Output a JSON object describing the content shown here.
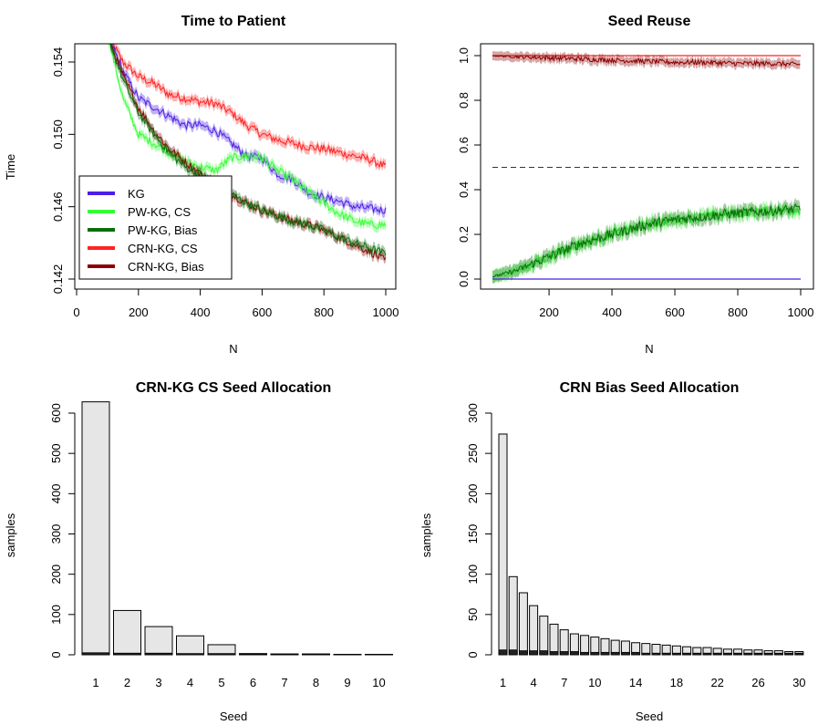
{
  "colors": {
    "kg": "#4b1fe6",
    "pw_cs": "#33ff33",
    "pw_bias": "#0a6e0a",
    "crn_cs": "#ff2222",
    "crn_bias": "#8b0000",
    "bar_fill": "#e6e6e6",
    "bar_base": "#222222"
  },
  "chart_data": [
    {
      "type": "line",
      "title": "Time to Patient",
      "xlabel": "N",
      "ylabel": "Time",
      "xlim": [
        0,
        1000
      ],
      "ylim": [
        0.142,
        0.1555
      ],
      "xticks": [
        0,
        200,
        400,
        600,
        800,
        1000
      ],
      "yticks": [
        0.142,
        0.146,
        0.15,
        0.154
      ],
      "ytick_labels": [
        "0.142",
        "0.146",
        "0.150",
        "0.154"
      ],
      "legend": {
        "position": "bottom-left",
        "entries": [
          "KG",
          "PW-KG, CS",
          "PW-KG, Bias",
          "CRN-KG, CS",
          "CRN-KG, Bias"
        ]
      },
      "series": [
        {
          "name": "KG",
          "color_key": "kg",
          "x": [
            100,
            150,
            200,
            250,
            300,
            350,
            400,
            450,
            500,
            550,
            600,
            650,
            700,
            750,
            800,
            850,
            900,
            950,
            1000
          ],
          "values": [
            0.1555,
            0.1535,
            0.152,
            0.1515,
            0.151,
            0.1505,
            0.1505,
            0.1502,
            0.1495,
            0.1488,
            0.1487,
            0.1478,
            0.1475,
            0.1468,
            0.1465,
            0.1463,
            0.146,
            0.1459,
            0.1458
          ]
        },
        {
          "name": "PW-KG, CS",
          "color_key": "pw_cs",
          "x": [
            100,
            150,
            200,
            250,
            300,
            350,
            400,
            450,
            500,
            550,
            600,
            650,
            700,
            750,
            800,
            850,
            900,
            950,
            1000
          ],
          "values": [
            0.1555,
            0.152,
            0.15,
            0.1495,
            0.149,
            0.1485,
            0.1482,
            0.148,
            0.1487,
            0.1488,
            0.1487,
            0.148,
            0.1475,
            0.1468,
            0.1462,
            0.1456,
            0.1452,
            0.145,
            0.145
          ]
        },
        {
          "name": "PW-KG, Bias",
          "color_key": "pw_bias",
          "x": [
            100,
            150,
            200,
            250,
            300,
            350,
            400,
            450,
            500,
            550,
            600,
            650,
            700,
            750,
            800,
            850,
            900,
            950,
            1000
          ],
          "values": [
            0.1555,
            0.153,
            0.1512,
            0.15,
            0.149,
            0.1482,
            0.1478,
            0.1472,
            0.1467,
            0.1462,
            0.1458,
            0.1455,
            0.1452,
            0.145,
            0.1447,
            0.1443,
            0.144,
            0.1437,
            0.1434
          ]
        },
        {
          "name": "CRN-KG, CS",
          "color_key": "crn_cs",
          "x": [
            100,
            150,
            200,
            250,
            300,
            350,
            400,
            450,
            500,
            550,
            600,
            650,
            700,
            750,
            800,
            850,
            900,
            950,
            1000
          ],
          "values": [
            0.1555,
            0.154,
            0.1532,
            0.1528,
            0.1522,
            0.152,
            0.1518,
            0.1517,
            0.1512,
            0.1505,
            0.15,
            0.1497,
            0.1495,
            0.1493,
            0.1492,
            0.149,
            0.1488,
            0.1486,
            0.1482
          ]
        },
        {
          "name": "CRN-KG, Bias",
          "color_key": "crn_bias",
          "x": [
            100,
            150,
            200,
            250,
            300,
            350,
            400,
            450,
            500,
            550,
            600,
            650,
            700,
            750,
            800,
            850,
            900,
            950,
            1000
          ],
          "values": [
            0.1555,
            0.1532,
            0.1515,
            0.1502,
            0.1492,
            0.1485,
            0.1478,
            0.1472,
            0.1467,
            0.1462,
            0.1458,
            0.1455,
            0.1452,
            0.145,
            0.1447,
            0.1443,
            0.1439,
            0.1435,
            0.143
          ]
        }
      ]
    },
    {
      "type": "line",
      "title": "Seed Reuse",
      "xlabel": "N",
      "ylabel": "",
      "xlim": [
        0,
        1000
      ],
      "ylim": [
        0,
        1.0
      ],
      "xticks": [
        200,
        400,
        600,
        800,
        1000
      ],
      "yticks": [
        0.0,
        0.2,
        0.4,
        0.6,
        0.8,
        1.0
      ],
      "ytick_labels": [
        "0.0",
        "0.2",
        "0.4",
        "0.6",
        "0.8",
        "1.0"
      ],
      "reference_line": 0.5,
      "series": [
        {
          "name": "CRN-KG, CS",
          "color_key": "crn_cs",
          "x": [
            20,
            1000
          ],
          "values": [
            1.0,
            1.0
          ]
        },
        {
          "name": "CRN-KG, Bias",
          "color_key": "crn_bias",
          "x": [
            20,
            100,
            200,
            300,
            400,
            500,
            600,
            700,
            800,
            900,
            1000
          ],
          "values": [
            1.0,
            0.995,
            0.99,
            0.985,
            0.98,
            0.975,
            0.97,
            0.97,
            0.965,
            0.965,
            0.96
          ]
        },
        {
          "name": "PW-KG, CS",
          "color_key": "pw_cs",
          "x": [
            20,
            50,
            100,
            150,
            200,
            250,
            300,
            350,
            400,
            450,
            500,
            550,
            600,
            650,
            700,
            750,
            800,
            850,
            900,
            950,
            1000
          ],
          "values": [
            0.01,
            0.02,
            0.04,
            0.07,
            0.1,
            0.13,
            0.16,
            0.18,
            0.2,
            0.22,
            0.24,
            0.255,
            0.265,
            0.275,
            0.28,
            0.29,
            0.295,
            0.3,
            0.305,
            0.31,
            0.31
          ]
        },
        {
          "name": "PW-KG, Bias",
          "color_key": "pw_bias",
          "x": [
            20,
            50,
            100,
            150,
            200,
            250,
            300,
            350,
            400,
            450,
            500,
            550,
            600,
            650,
            700,
            750,
            800,
            850,
            900,
            950,
            1000
          ],
          "values": [
            0.01,
            0.02,
            0.04,
            0.07,
            0.1,
            0.13,
            0.16,
            0.18,
            0.2,
            0.22,
            0.24,
            0.255,
            0.265,
            0.275,
            0.28,
            0.29,
            0.295,
            0.3,
            0.305,
            0.31,
            0.315
          ]
        },
        {
          "name": "KG",
          "color_key": "kg",
          "x": [
            20,
            1000
          ],
          "values": [
            0.0,
            0.0
          ]
        }
      ]
    },
    {
      "type": "bar",
      "title": "CRN-KG CS Seed Allocation",
      "xlabel": "Seed",
      "ylabel": "samples",
      "ylim": [
        0,
        620
      ],
      "yticks": [
        0,
        100,
        200,
        300,
        400,
        500,
        600
      ],
      "categories": [
        "1",
        "2",
        "3",
        "4",
        "5",
        "6",
        "7",
        "8",
        "9",
        "10"
      ],
      "tick_labels": [
        "1",
        "2",
        "3",
        "4",
        "5",
        "6",
        "7",
        "8",
        "9",
        "10"
      ],
      "values": [
        628,
        110,
        70,
        47,
        25,
        3,
        2,
        2,
        1,
        1
      ],
      "base_values": [
        5,
        4,
        4,
        3,
        3,
        2,
        2,
        2,
        1,
        1
      ]
    },
    {
      "type": "bar",
      "title": "CRN Bias Seed Allocation",
      "xlabel": "Seed",
      "ylabel": "samples",
      "ylim": [
        0,
        300
      ],
      "yticks": [
        0,
        50,
        100,
        150,
        200,
        250,
        300
      ],
      "categories": [
        "1",
        "2",
        "3",
        "4",
        "5",
        "6",
        "7",
        "8",
        "9",
        "10",
        "11",
        "12",
        "13",
        "14",
        "15",
        "16",
        "17",
        "18",
        "19",
        "20",
        "21",
        "22",
        "23",
        "24",
        "25",
        "26",
        "27",
        "28",
        "29",
        "30"
      ],
      "tick_labels": [
        "1",
        "4",
        "7",
        "10",
        "14",
        "18",
        "22",
        "26",
        "30"
      ],
      "tick_positions": [
        1,
        4,
        7,
        10,
        14,
        18,
        22,
        26,
        30
      ],
      "values": [
        274,
        97,
        77,
        61,
        48,
        38,
        31,
        26,
        24,
        22,
        20,
        18,
        17,
        15,
        14,
        13,
        12,
        11,
        10,
        9,
        9,
        8,
        7,
        7,
        6,
        6,
        5,
        5,
        4,
        4
      ],
      "base_values": [
        6,
        6,
        5,
        5,
        5,
        4,
        4,
        4,
        3,
        3,
        3,
        3,
        3,
        3,
        2,
        2,
        2,
        2,
        2,
        2,
        2,
        2,
        2,
        2,
        2,
        2,
        2,
        2,
        2,
        2
      ]
    }
  ]
}
